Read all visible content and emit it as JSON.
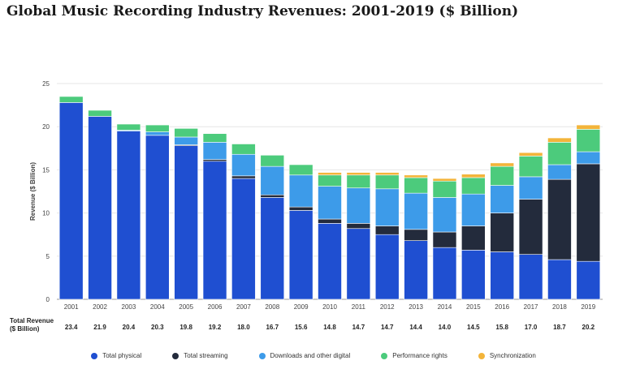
{
  "page": {
    "title": "Global Music Recording Industry Revenues: 2001-2019 ($ Billion)"
  },
  "chart_data": {
    "type": "bar",
    "stacked": true,
    "title": "Global Music Recording Industry Revenues: 2001-2019 ($ Billion)",
    "ylabel": "Revenue ($ Billion)",
    "xlabel": "",
    "ylim": [
      0,
      25
    ],
    "yticks": [
      0,
      5,
      10,
      15,
      20,
      25
    ],
    "grid": true,
    "categories": [
      "2001",
      "2002",
      "2003",
      "2004",
      "2005",
      "2006",
      "2007",
      "2008",
      "2009",
      "2010",
      "2011",
      "2012",
      "2013",
      "2014",
      "2015",
      "2016",
      "2017",
      "2018",
      "2019"
    ],
    "series": [
      {
        "name": "Total physical",
        "color": "#1f4fd1",
        "values": [
          22.8,
          21.2,
          19.5,
          19.0,
          17.8,
          16.0,
          14.0,
          11.8,
          10.3,
          8.8,
          8.2,
          7.5,
          6.8,
          6.0,
          5.7,
          5.5,
          5.2,
          4.6,
          4.4
        ]
      },
      {
        "name": "Total streaming",
        "color": "#232b3c",
        "values": [
          0.0,
          0.0,
          0.0,
          0.0,
          0.1,
          0.2,
          0.3,
          0.3,
          0.4,
          0.5,
          0.6,
          1.0,
          1.3,
          1.8,
          2.8,
          4.5,
          6.4,
          9.3,
          11.3
        ]
      },
      {
        "name": "Downloads and other digital",
        "color": "#3d9be9",
        "values": [
          0.0,
          0.0,
          0.1,
          0.4,
          0.9,
          2.0,
          2.5,
          3.3,
          3.7,
          3.8,
          4.1,
          4.3,
          4.2,
          4.0,
          3.7,
          3.2,
          2.6,
          1.7,
          1.4
        ]
      },
      {
        "name": "Performance rights",
        "color": "#4ccb7c",
        "values": [
          0.7,
          0.7,
          0.7,
          0.8,
          1.0,
          1.0,
          1.2,
          1.3,
          1.2,
          1.3,
          1.5,
          1.6,
          1.8,
          1.9,
          1.9,
          2.2,
          2.4,
          2.6,
          2.6
        ]
      },
      {
        "name": "Synchronization",
        "color": "#f3b43a",
        "values": [
          0.0,
          0.0,
          0.0,
          0.0,
          0.0,
          0.0,
          0.0,
          0.0,
          0.0,
          0.3,
          0.3,
          0.3,
          0.3,
          0.3,
          0.4,
          0.4,
          0.4,
          0.5,
          0.5
        ]
      }
    ],
    "totals_label": [
      "Total Revenue",
      "($ Billion)"
    ],
    "totals": [
      "23.4",
      "21.9",
      "20.4",
      "20.3",
      "19.8",
      "19.2",
      "18.0",
      "16.7",
      "15.6",
      "14.8",
      "14.7",
      "14.7",
      "14.4",
      "14.0",
      "14.5",
      "15.8",
      "17.0",
      "18.7",
      "20.2"
    ],
    "legend": [
      "Total physical",
      "Total streaming",
      "Downloads and other digital",
      "Performance rights",
      "Synchronization"
    ],
    "legend_position": "bottom"
  }
}
